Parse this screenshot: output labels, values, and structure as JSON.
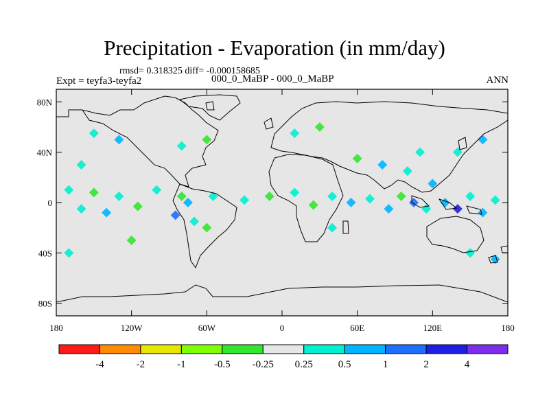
{
  "title": "Precipitation - Evaporation (in mm/day)",
  "stats_line": "rmsd= 0.318325 diff= -0.000158685",
  "experiment_label": "Expt = teyfa3-teyfa2",
  "experiment_name": "000_0_MaBP - 000_0_MaBP",
  "season": "ANN",
  "map": {
    "land_fill": "#e6e6e6",
    "coast_color": "#000000",
    "lon_range": [
      -180,
      180
    ],
    "lat_range": [
      -90,
      90
    ],
    "lat_ticks": [
      {
        "value": 80,
        "label": "80N"
      },
      {
        "value": 40,
        "label": "40N"
      },
      {
        "value": 0,
        "label": "0"
      },
      {
        "value": -40,
        "label": "40S"
      },
      {
        "value": -80,
        "label": "80S"
      }
    ],
    "lon_ticks": [
      {
        "value": -180,
        "label": "180"
      },
      {
        "value": -120,
        "label": "120W"
      },
      {
        "value": -60,
        "label": "60W"
      },
      {
        "value": 0,
        "label": "0"
      },
      {
        "value": 60,
        "label": "60E"
      },
      {
        "value": 120,
        "label": "120E"
      },
      {
        "value": 180,
        "label": "180"
      }
    ]
  },
  "colorbar": {
    "colors": [
      "#ff1a1a",
      "#ff8c00",
      "#e6e600",
      "#80ff00",
      "#33e62e",
      "#e6e6e6",
      "#00f0d0",
      "#00b4ff",
      "#1e6eff",
      "#1e1ee6",
      "#7d2deb"
    ],
    "labels": [
      "-4",
      "-2",
      "-1",
      "-0.5",
      "-0.25",
      "0.25",
      "0.5",
      "1",
      "2",
      "4"
    ]
  },
  "anomaly_cells": [
    {
      "lon": -170,
      "lat": 10,
      "level": 6
    },
    {
      "lon": -160,
      "lat": -5,
      "level": 6
    },
    {
      "lon": -150,
      "lat": 8,
      "level": 4
    },
    {
      "lon": -140,
      "lat": -8,
      "level": 7
    },
    {
      "lon": -130,
      "lat": 5,
      "level": 6
    },
    {
      "lon": -115,
      "lat": -3,
      "level": 4
    },
    {
      "lon": -100,
      "lat": 10,
      "level": 6
    },
    {
      "lon": -85,
      "lat": -10,
      "level": 8
    },
    {
      "lon": -80,
      "lat": 5,
      "level": 4
    },
    {
      "lon": -70,
      "lat": -15,
      "level": 6
    },
    {
      "lon": -75,
      "lat": 0,
      "level": 7
    },
    {
      "lon": -60,
      "lat": -20,
      "level": 4
    },
    {
      "lon": -55,
      "lat": 5,
      "level": 6
    },
    {
      "lon": -30,
      "lat": 2,
      "level": 6
    },
    {
      "lon": -10,
      "lat": 5,
      "level": 4
    },
    {
      "lon": 10,
      "lat": 8,
      "level": 6
    },
    {
      "lon": 25,
      "lat": -2,
      "level": 4
    },
    {
      "lon": 40,
      "lat": 5,
      "level": 6
    },
    {
      "lon": 55,
      "lat": 0,
      "level": 7
    },
    {
      "lon": 70,
      "lat": 3,
      "level": 6
    },
    {
      "lon": 85,
      "lat": -5,
      "level": 7
    },
    {
      "lon": 95,
      "lat": 5,
      "level": 4
    },
    {
      "lon": 105,
      "lat": 0,
      "level": 8
    },
    {
      "lon": 115,
      "lat": -5,
      "level": 6
    },
    {
      "lon": 130,
      "lat": 0,
      "level": 7
    },
    {
      "lon": 140,
      "lat": -5,
      "level": 9
    },
    {
      "lon": 150,
      "lat": 5,
      "level": 6
    },
    {
      "lon": 160,
      "lat": -8,
      "level": 7
    },
    {
      "lon": 170,
      "lat": 2,
      "level": 6
    },
    {
      "lon": 120,
      "lat": 15,
      "level": 7
    },
    {
      "lon": 100,
      "lat": 25,
      "level": 6
    },
    {
      "lon": 80,
      "lat": 30,
      "level": 7
    },
    {
      "lon": 60,
      "lat": 35,
      "level": 4
    },
    {
      "lon": 140,
      "lat": 40,
      "level": 6
    },
    {
      "lon": 160,
      "lat": 50,
      "level": 7
    },
    {
      "lon": -150,
      "lat": 55,
      "level": 6
    },
    {
      "lon": -130,
      "lat": 50,
      "level": 7
    },
    {
      "lon": -80,
      "lat": 45,
      "level": 6
    },
    {
      "lon": -60,
      "lat": 50,
      "level": 4
    },
    {
      "lon": 10,
      "lat": 55,
      "level": 6
    },
    {
      "lon": 30,
      "lat": 60,
      "level": 4
    },
    {
      "lon": -170,
      "lat": -40,
      "level": 6
    },
    {
      "lon": -120,
      "lat": -30,
      "level": 4
    },
    {
      "lon": 150,
      "lat": -40,
      "level": 6
    },
    {
      "lon": 170,
      "lat": -45,
      "level": 7
    },
    {
      "lon": 40,
      "lat": -20,
      "level": 6
    },
    {
      "lon": -160,
      "lat": 30,
      "level": 6
    },
    {
      "lon": 110,
      "lat": 40,
      "level": 6
    }
  ]
}
